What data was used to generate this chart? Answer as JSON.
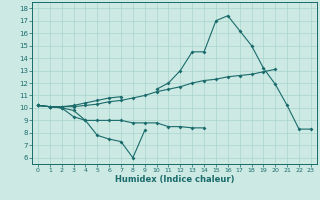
{
  "xlabel": "Humidex (Indice chaleur)",
  "bg_color": "#cce9e4",
  "line_color": "#1a6b6b",
  "grid_color": "#aad4ce",
  "x_values": [
    0,
    1,
    2,
    3,
    4,
    5,
    6,
    7,
    8,
    9,
    10,
    11,
    12,
    13,
    14,
    15,
    16,
    17,
    18,
    19,
    20,
    21,
    22,
    23
  ],
  "series1": [
    10.2,
    10.1,
    10.0,
    9.3,
    9.0,
    7.8,
    7.5,
    7.3,
    6.0,
    8.2,
    null,
    null,
    null,
    null,
    null,
    null,
    null,
    null,
    null,
    null,
    null,
    null,
    null,
    null
  ],
  "series2": [
    10.2,
    10.1,
    10.0,
    9.8,
    9.0,
    9.0,
    9.0,
    9.0,
    8.8,
    8.8,
    8.8,
    8.5,
    8.5,
    8.4,
    8.4,
    null,
    null,
    null,
    null,
    null,
    null,
    null,
    null,
    null
  ],
  "series3": [
    10.2,
    10.1,
    10.1,
    10.1,
    10.2,
    10.3,
    10.5,
    10.6,
    10.8,
    11.0,
    11.3,
    11.5,
    11.7,
    12.0,
    12.2,
    12.3,
    12.5,
    12.6,
    12.7,
    12.9,
    13.1,
    null,
    null,
    null
  ],
  "series4": [
    10.2,
    10.1,
    10.1,
    10.2,
    10.4,
    10.6,
    10.8,
    10.9,
    null,
    null,
    11.5,
    12.0,
    13.0,
    14.5,
    14.5,
    17.0,
    17.4,
    16.2,
    15.0,
    13.2,
    11.9,
    10.2,
    8.3,
    8.3
  ],
  "xlim": [
    -0.5,
    23.5
  ],
  "ylim": [
    5.5,
    18.5
  ],
  "yticks": [
    6,
    7,
    8,
    9,
    10,
    11,
    12,
    13,
    14,
    15,
    16,
    17,
    18
  ],
  "xticks": [
    0,
    1,
    2,
    3,
    4,
    5,
    6,
    7,
    8,
    9,
    10,
    11,
    12,
    13,
    14,
    15,
    16,
    17,
    18,
    19,
    20,
    21,
    22,
    23
  ]
}
